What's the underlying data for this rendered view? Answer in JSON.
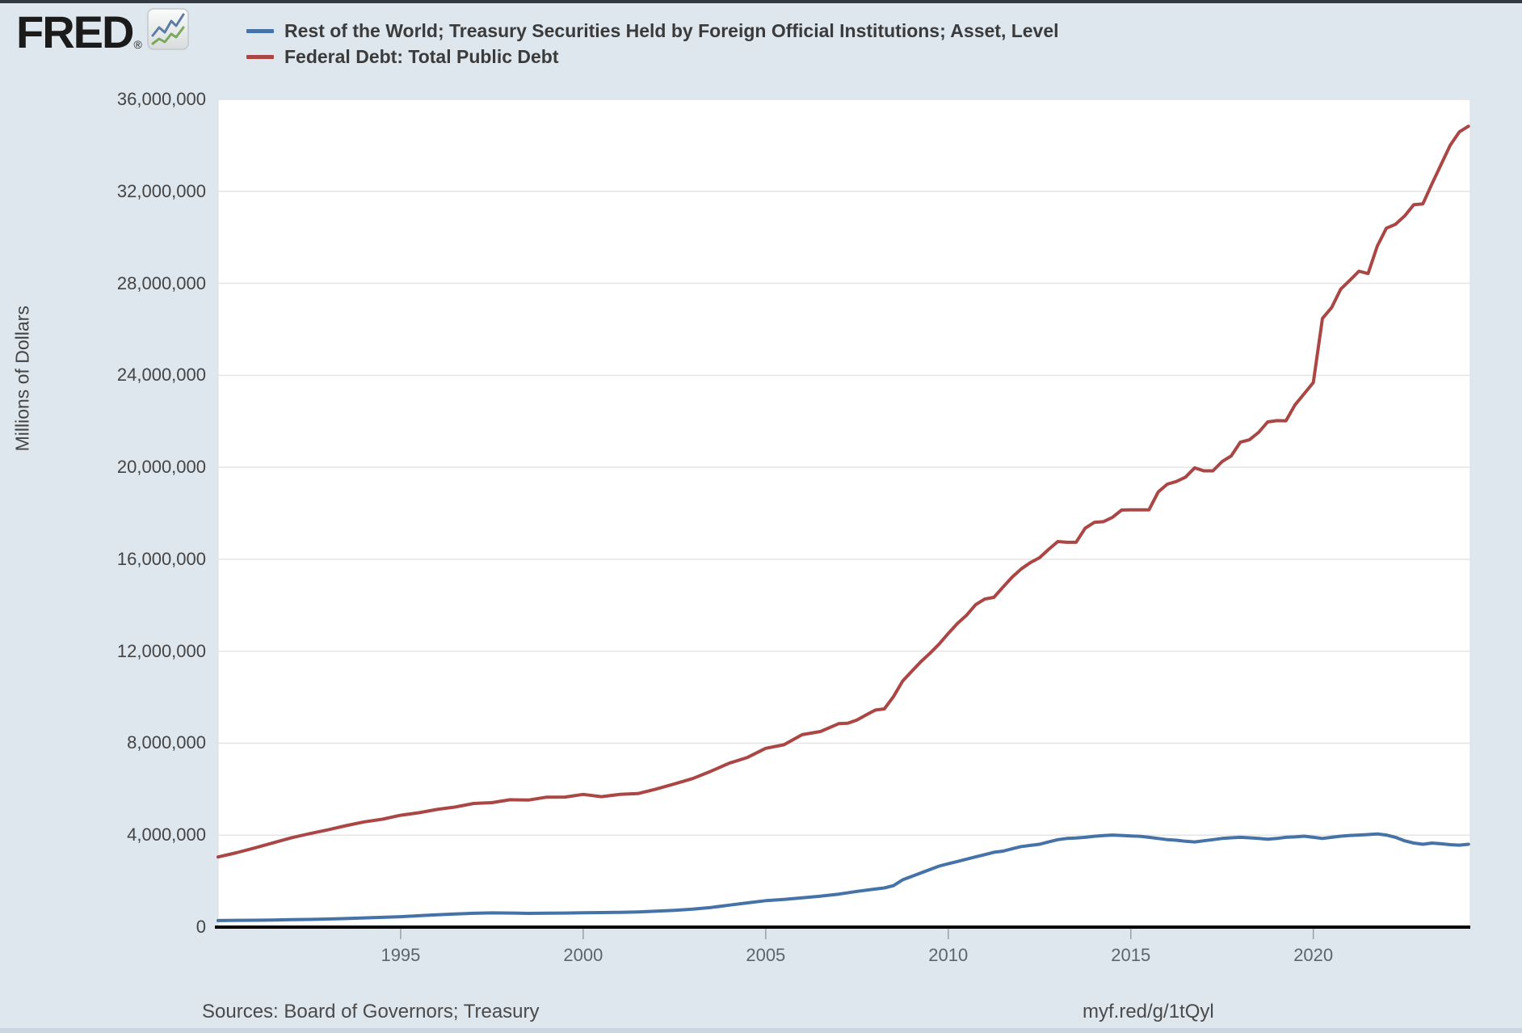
{
  "header": {
    "logo_text": "FRED",
    "logo_registered": "®",
    "legend": [
      {
        "label": "Rest of the World; Treasury Securities Held by Foreign Official Institutions; Asset, Level",
        "color": "#4572a7"
      },
      {
        "label": "Federal Debt: Total Public Debt",
        "color": "#aa4643"
      }
    ]
  },
  "footer": {
    "sources": "Sources: Board of Governors; Treasury",
    "share_url": "myf.red/g/1tQyl"
  },
  "colors": {
    "page_background": "#dee7ee",
    "plot_background": "#ffffff",
    "gridline": "#e4e4e4",
    "plot_border": "#d9dde1",
    "axis_line": "#000000",
    "tick_mark": "#96a1ad",
    "blue_series": "#4572a7",
    "red_series": "#aa4643"
  },
  "chart_data": {
    "type": "line",
    "title": "",
    "xlabel": "",
    "ylabel": "Millions of Dollars",
    "grid": "horizontal",
    "legend_position": "top-left",
    "x_domain": [
      1990.0,
      2024.3
    ],
    "ylim": [
      0,
      36000000
    ],
    "y_ticks": [
      0,
      4000000,
      8000000,
      12000000,
      16000000,
      20000000,
      24000000,
      28000000,
      32000000,
      36000000
    ],
    "x_ticks": [
      1995,
      2000,
      2005,
      2010,
      2015,
      2020
    ],
    "series": [
      {
        "name": "Rest of the World; Treasury Securities Held by Foreign Official Institutions; Asset, Level",
        "color": "#4572a7",
        "points": [
          [
            1990.0,
            285000
          ],
          [
            1990.5,
            295000
          ],
          [
            1991.0,
            300000
          ],
          [
            1991.5,
            310000
          ],
          [
            1992.0,
            322000
          ],
          [
            1992.5,
            335000
          ],
          [
            1993.0,
            352000
          ],
          [
            1993.5,
            372000
          ],
          [
            1994.0,
            400000
          ],
          [
            1994.5,
            425000
          ],
          [
            1995.0,
            455000
          ],
          [
            1995.5,
            495000
          ],
          [
            1996.0,
            535000
          ],
          [
            1996.5,
            570000
          ],
          [
            1997.0,
            600000
          ],
          [
            1997.5,
            618000
          ],
          [
            1998.0,
            612000
          ],
          [
            1998.5,
            598000
          ],
          [
            1999.0,
            603000
          ],
          [
            1999.5,
            612000
          ],
          [
            2000.0,
            622000
          ],
          [
            2000.5,
            632000
          ],
          [
            2001.0,
            642000
          ],
          [
            2001.5,
            662000
          ],
          [
            2002.0,
            692000
          ],
          [
            2002.5,
            732000
          ],
          [
            2003.0,
            782000
          ],
          [
            2003.5,
            855000
          ],
          [
            2004.0,
            955000
          ],
          [
            2004.5,
            1055000
          ],
          [
            2005.0,
            1150000
          ],
          [
            2005.5,
            1205000
          ],
          [
            2006.0,
            1275000
          ],
          [
            2006.5,
            1345000
          ],
          [
            2007.0,
            1435000
          ],
          [
            2007.5,
            1555000
          ],
          [
            2008.0,
            1655000
          ],
          [
            2008.25,
            1705000
          ],
          [
            2008.5,
            1805000
          ],
          [
            2008.75,
            2055000
          ],
          [
            2009.0,
            2205000
          ],
          [
            2009.25,
            2355000
          ],
          [
            2009.5,
            2505000
          ],
          [
            2009.75,
            2655000
          ],
          [
            2010.0,
            2755000
          ],
          [
            2010.25,
            2855000
          ],
          [
            2010.5,
            2955000
          ],
          [
            2010.75,
            3055000
          ],
          [
            2011.0,
            3155000
          ],
          [
            2011.25,
            3255000
          ],
          [
            2011.5,
            3305000
          ],
          [
            2011.75,
            3405000
          ],
          [
            2012.0,
            3505000
          ],
          [
            2012.25,
            3555000
          ],
          [
            2012.5,
            3605000
          ],
          [
            2012.75,
            3705000
          ],
          [
            2013.0,
            3805000
          ],
          [
            2013.25,
            3855000
          ],
          [
            2013.5,
            3875000
          ],
          [
            2013.75,
            3905000
          ],
          [
            2014.0,
            3950000
          ],
          [
            2014.25,
            3980000
          ],
          [
            2014.5,
            4005000
          ],
          [
            2014.75,
            3985000
          ],
          [
            2015.0,
            3965000
          ],
          [
            2015.25,
            3950000
          ],
          [
            2015.5,
            3905000
          ],
          [
            2015.75,
            3855000
          ],
          [
            2016.0,
            3805000
          ],
          [
            2016.25,
            3780000
          ],
          [
            2016.5,
            3735000
          ],
          [
            2016.75,
            3705000
          ],
          [
            2017.0,
            3755000
          ],
          [
            2017.25,
            3805000
          ],
          [
            2017.5,
            3855000
          ],
          [
            2017.75,
            3885000
          ],
          [
            2018.0,
            3905000
          ],
          [
            2018.25,
            3885000
          ],
          [
            2018.5,
            3855000
          ],
          [
            2018.75,
            3825000
          ],
          [
            2019.0,
            3855000
          ],
          [
            2019.25,
            3905000
          ],
          [
            2019.5,
            3925000
          ],
          [
            2019.75,
            3955000
          ],
          [
            2020.0,
            3905000
          ],
          [
            2020.25,
            3855000
          ],
          [
            2020.5,
            3905000
          ],
          [
            2020.75,
            3955000
          ],
          [
            2021.0,
            3985000
          ],
          [
            2021.25,
            4005000
          ],
          [
            2021.5,
            4025000
          ],
          [
            2021.75,
            4055000
          ],
          [
            2022.0,
            4005000
          ],
          [
            2022.25,
            3905000
          ],
          [
            2022.5,
            3755000
          ],
          [
            2022.75,
            3655000
          ],
          [
            2023.0,
            3605000
          ],
          [
            2023.25,
            3655000
          ],
          [
            2023.5,
            3625000
          ],
          [
            2023.75,
            3585000
          ],
          [
            2024.0,
            3565000
          ],
          [
            2024.25,
            3605000
          ]
        ]
      },
      {
        "name": "Federal Debt: Total Public Debt",
        "color": "#aa4643",
        "points": [
          [
            1990.0,
            3052000
          ],
          [
            1990.5,
            3233000
          ],
          [
            1991.0,
            3441000
          ],
          [
            1991.5,
            3665000
          ],
          [
            1992.0,
            3881000
          ],
          [
            1992.5,
            4065000
          ],
          [
            1993.0,
            4231000
          ],
          [
            1993.5,
            4412000
          ],
          [
            1994.0,
            4576000
          ],
          [
            1994.5,
            4693000
          ],
          [
            1995.0,
            4864000
          ],
          [
            1995.5,
            4974000
          ],
          [
            1996.0,
            5118000
          ],
          [
            1996.5,
            5225000
          ],
          [
            1997.0,
            5380000
          ],
          [
            1997.5,
            5413000
          ],
          [
            1998.0,
            5542000
          ],
          [
            1998.5,
            5526000
          ],
          [
            1999.0,
            5652000
          ],
          [
            1999.5,
            5656000
          ],
          [
            2000.0,
            5773000
          ],
          [
            2000.5,
            5674000
          ],
          [
            2001.0,
            5774000
          ],
          [
            2001.5,
            5807000
          ],
          [
            2002.0,
            6006000
          ],
          [
            2002.5,
            6228000
          ],
          [
            2003.0,
            6460000
          ],
          [
            2003.5,
            6783000
          ],
          [
            2004.0,
            7131000
          ],
          [
            2004.5,
            7379000
          ],
          [
            2005.0,
            7776000
          ],
          [
            2005.5,
            7933000
          ],
          [
            2006.0,
            8371000
          ],
          [
            2006.5,
            8507000
          ],
          [
            2007.0,
            8849000
          ],
          [
            2007.25,
            8868000
          ],
          [
            2007.5,
            9008000
          ],
          [
            2007.75,
            9229000
          ],
          [
            2008.0,
            9438000
          ],
          [
            2008.25,
            9492000
          ],
          [
            2008.5,
            10025000
          ],
          [
            2008.75,
            10700000
          ],
          [
            2009.0,
            11127000
          ],
          [
            2009.25,
            11545000
          ],
          [
            2009.5,
            11910000
          ],
          [
            2009.75,
            12311000
          ],
          [
            2010.0,
            12773000
          ],
          [
            2010.25,
            13203000
          ],
          [
            2010.5,
            13562000
          ],
          [
            2010.75,
            14025000
          ],
          [
            2011.0,
            14270000
          ],
          [
            2011.25,
            14343000
          ],
          [
            2011.5,
            14790000
          ],
          [
            2011.75,
            15223000
          ],
          [
            2012.0,
            15582000
          ],
          [
            2012.25,
            15856000
          ],
          [
            2012.5,
            16066000
          ],
          [
            2012.75,
            16433000
          ],
          [
            2013.0,
            16771000
          ],
          [
            2013.25,
            16738000
          ],
          [
            2013.5,
            16738000
          ],
          [
            2013.75,
            17352000
          ],
          [
            2014.0,
            17601000
          ],
          [
            2014.25,
            17633000
          ],
          [
            2014.5,
            17824000
          ],
          [
            2014.75,
            18141000
          ],
          [
            2015.0,
            18152000
          ],
          [
            2015.25,
            18152000
          ],
          [
            2015.5,
            18151000
          ],
          [
            2015.75,
            18922000
          ],
          [
            2016.0,
            19265000
          ],
          [
            2016.25,
            19382000
          ],
          [
            2016.5,
            19573000
          ],
          [
            2016.75,
            19977000
          ],
          [
            2017.0,
            19846000
          ],
          [
            2017.25,
            19845000
          ],
          [
            2017.5,
            20245000
          ],
          [
            2017.75,
            20493000
          ],
          [
            2018.0,
            21090000
          ],
          [
            2018.25,
            21195000
          ],
          [
            2018.5,
            21516000
          ],
          [
            2018.75,
            21974000
          ],
          [
            2019.0,
            22028000
          ],
          [
            2019.25,
            22023000
          ],
          [
            2019.5,
            22719000
          ],
          [
            2019.75,
            23201000
          ],
          [
            2020.0,
            23687000
          ],
          [
            2020.25,
            26477000
          ],
          [
            2020.5,
            26945000
          ],
          [
            2020.75,
            27748000
          ],
          [
            2021.0,
            28133000
          ],
          [
            2021.25,
            28529000
          ],
          [
            2021.5,
            28429000
          ],
          [
            2021.75,
            29617000
          ],
          [
            2022.0,
            30401000
          ],
          [
            2022.25,
            30569000
          ],
          [
            2022.5,
            30929000
          ],
          [
            2022.75,
            31420000
          ],
          [
            2023.0,
            31458000
          ],
          [
            2023.25,
            32332000
          ],
          [
            2023.5,
            33167000
          ],
          [
            2023.75,
            34002000
          ],
          [
            2024.0,
            34587000
          ],
          [
            2024.25,
            34832000
          ]
        ]
      }
    ]
  }
}
